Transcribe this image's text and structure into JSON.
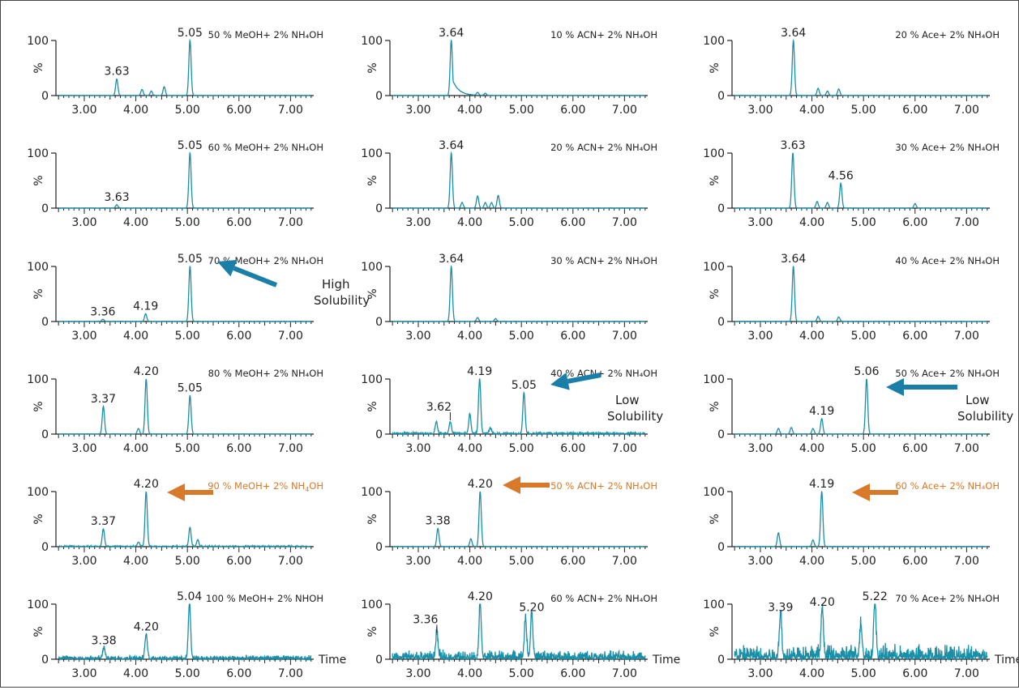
{
  "chart_data": {
    "type": "line",
    "x_ticks": [
      "3.00",
      "4.00",
      "5.00",
      "6.00",
      "7.00"
    ],
    "y_ticks": [
      "0",
      "100"
    ],
    "ylabel": "%",
    "xlabel": "Time",
    "xlim": [
      2.45,
      7.45
    ],
    "ylim": [
      0,
      100
    ],
    "colors": {
      "trace": "#1a8fa8",
      "orange": "#d97a2b",
      "arrow_blue": "#1a7fa8"
    },
    "panels": [
      {
        "title": "50 % MeOH+ 2% NH₄OH",
        "row": 0,
        "col": 0,
        "peaks": [
          {
            "x": 3.63,
            "h": 30
          },
          {
            "x": 4.12,
            "h": 11
          },
          {
            "x": 4.3,
            "h": 8
          },
          {
            "x": 4.55,
            "h": 16
          },
          {
            "x": 5.05,
            "h": 100
          }
        ],
        "labels": [
          {
            "x": 3.63,
            "h": 30,
            "text": "3.63"
          },
          {
            "x": 5.05,
            "h": 100,
            "text": "5.05"
          }
        ]
      },
      {
        "title": "10 % ACN+ 2% NH₄OH",
        "row": 0,
        "col": 1,
        "peaks": [
          {
            "x": 3.64,
            "h": 100,
            "tail": true
          },
          {
            "x": 4.15,
            "h": 5
          },
          {
            "x": 4.3,
            "h": 4
          }
        ],
        "labels": [
          {
            "x": 3.64,
            "h": 100,
            "text": "3.64"
          }
        ]
      },
      {
        "title": "20 % Ace+ 2% NH₄OH",
        "row": 0,
        "col": 2,
        "peaks": [
          {
            "x": 3.64,
            "h": 100
          },
          {
            "x": 4.12,
            "h": 13
          },
          {
            "x": 4.3,
            "h": 8
          },
          {
            "x": 4.52,
            "h": 12
          }
        ],
        "labels": [
          {
            "x": 3.64,
            "h": 100,
            "text": "3.64"
          }
        ]
      },
      {
        "title": "60 % MeOH+ 2% NH₄OH",
        "row": 1,
        "col": 0,
        "peaks": [
          {
            "x": 3.63,
            "h": 6
          },
          {
            "x": 5.05,
            "h": 100
          }
        ],
        "labels": [
          {
            "x": 3.63,
            "h": 6,
            "text": "3.63"
          },
          {
            "x": 5.05,
            "h": 100,
            "text": "5.05"
          }
        ]
      },
      {
        "title": "20 % ACN+ 2% NH₄OH",
        "row": 1,
        "col": 1,
        "peaks": [
          {
            "x": 3.64,
            "h": 100
          },
          {
            "x": 3.85,
            "h": 10
          },
          {
            "x": 4.15,
            "h": 22
          },
          {
            "x": 4.3,
            "h": 10
          },
          {
            "x": 4.42,
            "h": 10
          },
          {
            "x": 4.55,
            "h": 23
          }
        ],
        "labels": [
          {
            "x": 3.64,
            "h": 100,
            "text": "3.64"
          }
        ]
      },
      {
        "title": "30 % Ace+ 2% NH₄OH",
        "row": 1,
        "col": 2,
        "peaks": [
          {
            "x": 3.63,
            "h": 100
          },
          {
            "x": 4.1,
            "h": 12
          },
          {
            "x": 4.3,
            "h": 10
          },
          {
            "x": 4.56,
            "h": 45
          },
          {
            "x": 6.0,
            "h": 8
          }
        ],
        "labels": [
          {
            "x": 3.63,
            "h": 100,
            "text": "3.63"
          },
          {
            "x": 4.56,
            "h": 45,
            "text": "4.56"
          }
        ]
      },
      {
        "title": "70 % MeOH+ 2% NH₄OH",
        "row": 2,
        "col": 0,
        "peaks": [
          {
            "x": 3.36,
            "h": 4
          },
          {
            "x": 4.19,
            "h": 14
          },
          {
            "x": 5.05,
            "h": 100
          }
        ],
        "labels": [
          {
            "x": 3.36,
            "h": 4,
            "text": "3.36"
          },
          {
            "x": 4.19,
            "h": 14,
            "text": "4.19"
          },
          {
            "x": 5.05,
            "h": 100,
            "text": "5.05"
          }
        ]
      },
      {
        "title": "30 % ACN+ 2% NH₄OH",
        "row": 2,
        "col": 1,
        "peaks": [
          {
            "x": 3.64,
            "h": 100
          },
          {
            "x": 4.15,
            "h": 7
          },
          {
            "x": 4.5,
            "h": 5
          }
        ],
        "labels": [
          {
            "x": 3.64,
            "h": 100,
            "text": "3.64"
          }
        ]
      },
      {
        "title": "40 % Ace+ 2% NH₄OH",
        "row": 2,
        "col": 2,
        "peaks": [
          {
            "x": 3.64,
            "h": 100
          },
          {
            "x": 4.12,
            "h": 9
          },
          {
            "x": 4.52,
            "h": 8
          }
        ],
        "labels": [
          {
            "x": 3.64,
            "h": 100,
            "text": "3.64"
          }
        ]
      },
      {
        "title": "80 % MeOH+ 2% NH₄OH",
        "row": 3,
        "col": 0,
        "peaks": [
          {
            "x": 3.37,
            "h": 50
          },
          {
            "x": 4.05,
            "h": 10
          },
          {
            "x": 4.2,
            "h": 100
          },
          {
            "x": 5.05,
            "h": 70
          }
        ],
        "labels": [
          {
            "x": 3.37,
            "h": 50,
            "text": "3.37"
          },
          {
            "x": 4.2,
            "h": 100,
            "text": "4.20"
          },
          {
            "x": 5.05,
            "h": 70,
            "text": "5.05"
          }
        ]
      },
      {
        "title": "40 % ACN+ 2% NH₄OH",
        "row": 3,
        "col": 1,
        "peaks": [
          {
            "x": 3.35,
            "h": 22
          },
          {
            "x": 3.62,
            "h": 22
          },
          {
            "x": 4.0,
            "h": 35
          },
          {
            "x": 4.19,
            "h": 100
          },
          {
            "x": 4.4,
            "h": 10
          },
          {
            "x": 5.05,
            "h": 75
          }
        ],
        "noise": 4,
        "labels": [
          {
            "x": 3.62,
            "h": 22,
            "text": "3.62",
            "leader": true
          },
          {
            "x": 4.19,
            "h": 100,
            "text": "4.19"
          },
          {
            "x": 5.05,
            "h": 75,
            "text": "5.05"
          }
        ]
      },
      {
        "title": "50 % Ace+ 2% NH₄OH",
        "row": 3,
        "col": 2,
        "peaks": [
          {
            "x": 3.35,
            "h": 10
          },
          {
            "x": 3.6,
            "h": 12
          },
          {
            "x": 4.02,
            "h": 10
          },
          {
            "x": 4.19,
            "h": 28
          },
          {
            "x": 5.06,
            "h": 100
          }
        ],
        "labels": [
          {
            "x": 4.19,
            "h": 28,
            "text": "4.19"
          },
          {
            "x": 5.06,
            "h": 100,
            "text": "5.06"
          }
        ]
      },
      {
        "title": "90 % MeOH+ 2% NH",
        "title_sub": "4",
        "title_tail": "OH",
        "orange": true,
        "row": 4,
        "col": 0,
        "peaks": [
          {
            "x": 3.37,
            "h": 32
          },
          {
            "x": 4.05,
            "h": 8
          },
          {
            "x": 4.2,
            "h": 100
          },
          {
            "x": 5.05,
            "h": 35
          },
          {
            "x": 5.2,
            "h": 12
          }
        ],
        "noise": 2,
        "labels": [
          {
            "x": 3.37,
            "h": 32,
            "text": "3.37"
          },
          {
            "x": 4.2,
            "h": 100,
            "text": "4.20"
          }
        ]
      },
      {
        "title": "50 % ACN+ 2% NH₄OH",
        "orange": true,
        "row": 4,
        "col": 1,
        "peaks": [
          {
            "x": 3.38,
            "h": 33
          },
          {
            "x": 4.02,
            "h": 14
          },
          {
            "x": 4.2,
            "h": 100
          }
        ],
        "labels": [
          {
            "x": 3.38,
            "h": 33,
            "text": "3.38"
          },
          {
            "x": 4.2,
            "h": 100,
            "text": "4.20"
          }
        ]
      },
      {
        "title": "60 % Ace+ 2% NH₄OH",
        "orange": true,
        "row": 4,
        "col": 2,
        "peaks": [
          {
            "x": 3.35,
            "h": 25
          },
          {
            "x": 4.02,
            "h": 12
          },
          {
            "x": 4.19,
            "h": 100
          }
        ],
        "labels": [
          {
            "x": 4.19,
            "h": 100,
            "text": "4.19"
          }
        ]
      },
      {
        "title": "100 % MeOH+ 2% NHOH",
        "row": 5,
        "col": 0,
        "peaks": [
          {
            "x": 3.38,
            "h": 20
          },
          {
            "x": 4.2,
            "h": 45
          },
          {
            "x": 5.04,
            "h": 100
          }
        ],
        "noise": 8,
        "labels": [
          {
            "x": 3.38,
            "h": 20,
            "text": "3.38"
          },
          {
            "x": 4.2,
            "h": 45,
            "text": "4.20"
          },
          {
            "x": 5.04,
            "h": 100,
            "text": "5.04"
          }
        ]
      },
      {
        "title": "60 % ACN+ 2% NH₄OH",
        "row": 5,
        "col": 1,
        "peaks": [
          {
            "x": 3.36,
            "h": 45
          },
          {
            "x": 4.2,
            "h": 100
          },
          {
            "x": 5.08,
            "h": 70
          },
          {
            "x": 5.2,
            "h": 80
          }
        ],
        "noise": 18,
        "labels": [
          {
            "x": 3.36,
            "h": 45,
            "text": "3.36",
            "leader": true
          },
          {
            "x": 4.2,
            "h": 100,
            "text": "4.20"
          },
          {
            "x": 5.2,
            "h": 80,
            "text": "5.20"
          }
        ]
      },
      {
        "title": "70 % Ace+ 2% NH₄OH",
        "row": 5,
        "col": 2,
        "peaks": [
          {
            "x": 3.39,
            "h": 80
          },
          {
            "x": 4.2,
            "h": 90
          },
          {
            "x": 4.95,
            "h": 60
          },
          {
            "x": 5.22,
            "h": 100
          }
        ],
        "noise": 30,
        "labels": [
          {
            "x": 3.39,
            "h": 80,
            "text": "3.39"
          },
          {
            "x": 4.2,
            "h": 90,
            "text": "4.20"
          },
          {
            "x": 5.22,
            "h": 100,
            "text": "5.22"
          }
        ]
      }
    ],
    "annotations": [
      {
        "text": [
          "High",
          "Solubility"
        ],
        "panel_row": 2,
        "panel_col": 0,
        "arrow_color": "arrow_blue"
      },
      {
        "text": [
          "Low",
          "Solubility"
        ],
        "panel_row": 3,
        "panel_col": 1,
        "arrow_color": "arrow_blue"
      },
      {
        "text": [
          "Low",
          "Solubility"
        ],
        "panel_row": 3,
        "panel_col": 2,
        "arrow_color": "arrow_blue"
      },
      {
        "text": [],
        "panel_row": 4,
        "panel_col": 0,
        "arrow_color": "orange"
      },
      {
        "text": [],
        "panel_row": 4,
        "panel_col": 1,
        "arrow_color": "orange"
      },
      {
        "text": [],
        "panel_row": 4,
        "panel_col": 2,
        "arrow_color": "orange"
      }
    ]
  }
}
